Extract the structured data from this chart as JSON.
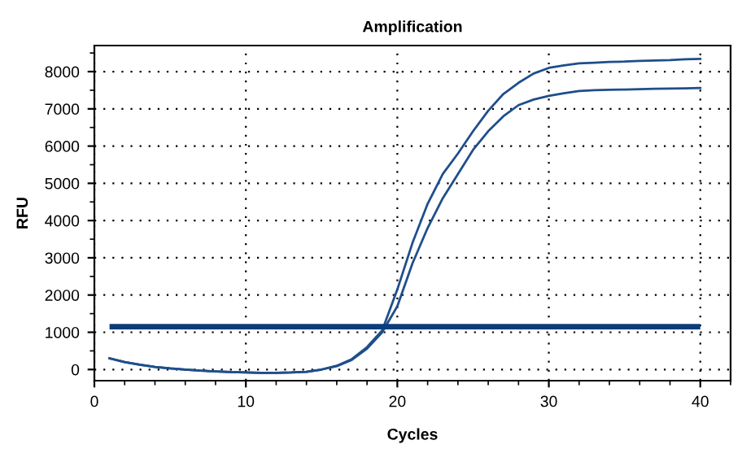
{
  "chart_data": {
    "type": "line",
    "title": "Amplification",
    "xlabel": "Cycles",
    "ylabel": "RFU",
    "x": [
      1,
      2,
      3,
      4,
      5,
      6,
      7,
      8,
      9,
      10,
      11,
      12,
      13,
      14,
      15,
      16,
      17,
      18,
      19,
      20,
      21,
      22,
      23,
      24,
      25,
      26,
      27,
      28,
      29,
      30,
      31,
      32,
      33,
      34,
      35,
      36,
      37,
      38,
      39,
      40
    ],
    "series": [
      {
        "color": "#1f4e8c",
        "values": [
          300,
          200,
          130,
          70,
          30,
          0,
          -30,
          -50,
          -70,
          -80,
          -90,
          -90,
          -80,
          -60,
          0,
          100,
          280,
          600,
          1050,
          2150,
          3400,
          4450,
          5250,
          5800,
          6400,
          6950,
          7400,
          7700,
          7950,
          8100,
          8170,
          8220,
          8240,
          8260,
          8270,
          8290,
          8300,
          8310,
          8330,
          8340
        ]
      },
      {
        "color": "#1f4e8c",
        "values": [
          300,
          200,
          130,
          70,
          30,
          0,
          -30,
          -50,
          -70,
          -80,
          -90,
          -90,
          -80,
          -60,
          0,
          90,
          260,
          560,
          1000,
          1700,
          2850,
          3800,
          4600,
          5250,
          5900,
          6400,
          6800,
          7100,
          7250,
          7350,
          7420,
          7480,
          7500,
          7510,
          7520,
          7530,
          7540,
          7545,
          7550,
          7560
        ]
      }
    ],
    "ref_lines": [
      {
        "axis": "y",
        "value": 1150,
        "color": "#0a3d7a"
      }
    ],
    "xlim": [
      0,
      42
    ],
    "ylim": [
      -300,
      8700
    ],
    "xticks": [
      0,
      10,
      20,
      30,
      40
    ],
    "yticks": [
      0,
      1000,
      2000,
      3000,
      4000,
      5000,
      6000,
      7000,
      8000
    ],
    "grid": true,
    "marker": "none",
    "line_style": "solid",
    "legend": false
  }
}
